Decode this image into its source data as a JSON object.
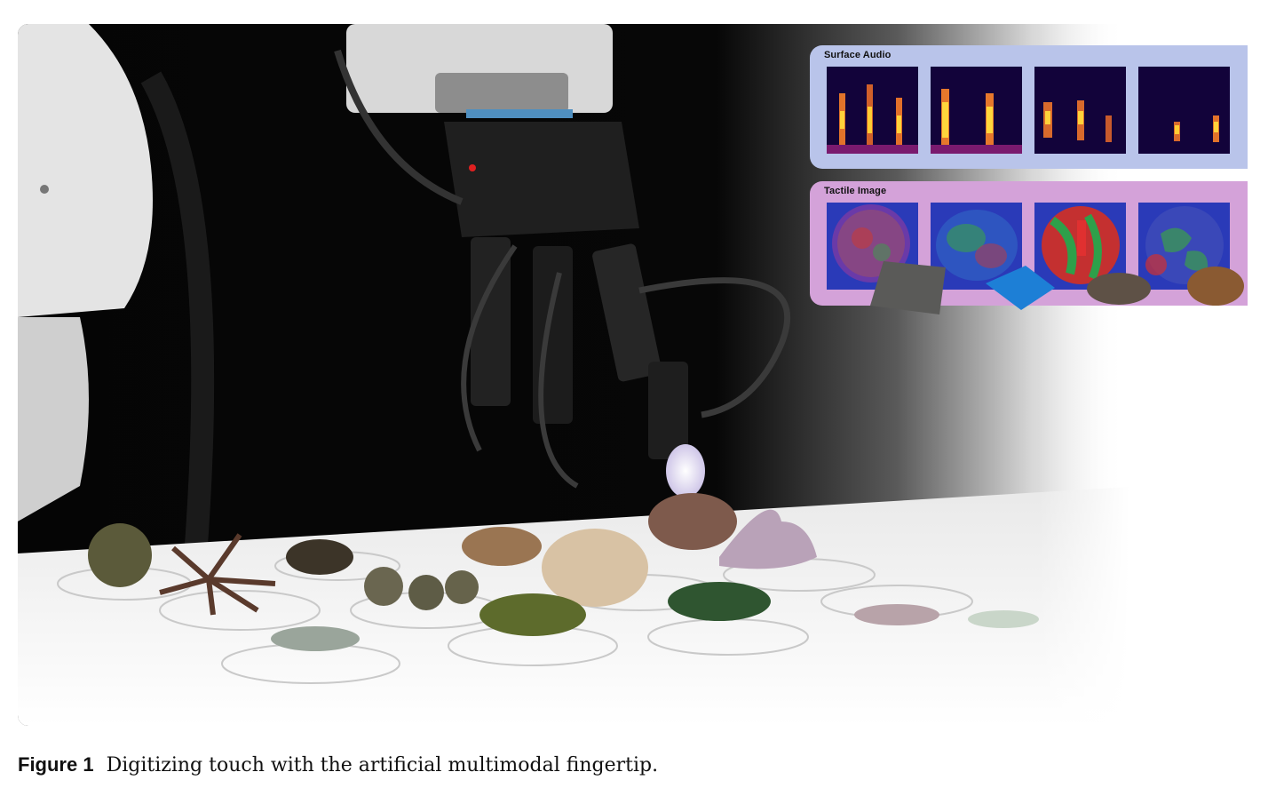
{
  "figure": {
    "label": "Figure 1",
    "caption": "Digitizing touch with the artificial multimodal fingertip."
  },
  "panels": {
    "audio": {
      "title": "Surface Audio"
    },
    "tactile": {
      "title": "Tactile Image"
    }
  },
  "colors": {
    "audio_panel": "#b9c4ea",
    "tactile_panel": "#d4a2d9",
    "spectrogram_bg": "#12033a"
  },
  "icons": [
    "robot-arm-image",
    "robot-hand-image",
    "fingertip-sensor-image",
    "specimen-dishes-image",
    "sandpaper-image",
    "cloth-image",
    "pinecone-image"
  ]
}
